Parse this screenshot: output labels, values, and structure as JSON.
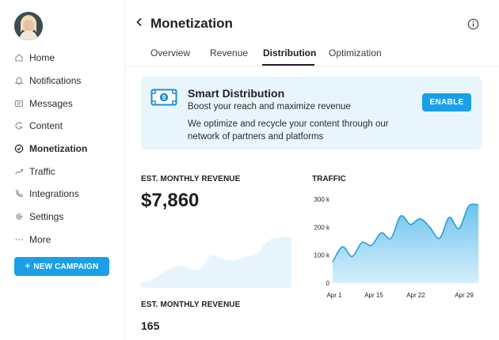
{
  "sidebar": {
    "items": [
      {
        "label": "Home",
        "icon": "home-icon",
        "active": false
      },
      {
        "label": "Notifications",
        "icon": "bell-icon",
        "active": false
      },
      {
        "label": "Messages",
        "icon": "message-icon",
        "active": false
      },
      {
        "label": "Content",
        "icon": "content-icon",
        "active": false
      },
      {
        "label": "Monetization",
        "icon": "check-circle-icon",
        "active": true
      },
      {
        "label": "Traffic",
        "icon": "trend-icon",
        "active": false
      },
      {
        "label": "Integrations",
        "icon": "phone-icon",
        "active": false
      },
      {
        "label": "Settings",
        "icon": "gear-icon",
        "active": false
      },
      {
        "label": "More",
        "icon": "more-icon",
        "active": false
      }
    ],
    "new_campaign_label": "NEW CAMPAIGN"
  },
  "header": {
    "title": "Monetization",
    "tabs": [
      {
        "label": "Overview",
        "active": false
      },
      {
        "label": "Revenue",
        "active": false
      },
      {
        "label": "Distribution",
        "active": true
      },
      {
        "label": "Optimization",
        "active": false
      }
    ]
  },
  "smart_distribution": {
    "title": "Smart Distribution",
    "subtitle": "Boost your reach and maximize revenue",
    "description": "We optimize and recycle your content through our network of partners and platforms",
    "enable_label": "ENABLE",
    "icon": "money-icon",
    "icon_text": "9"
  },
  "revenue": {
    "label": "EST. MONTHLY REVENUE",
    "value": "$7,860",
    "second_label": "EST. MONTHLY REVENUE",
    "second_value": "165"
  },
  "chart_data": {
    "type": "area",
    "title": "TRAFFIC",
    "x_ticks": [
      "Apr 1",
      "Apr 15",
      "Apr 22",
      "Apr 29"
    ],
    "y_ticks": [
      "0",
      "100 k",
      "200 k",
      "300 k"
    ],
    "ylim": [
      0,
      300
    ],
    "x": [
      1,
      3,
      5,
      7,
      9,
      11,
      13,
      15,
      17,
      19,
      21,
      23,
      25,
      27,
      29,
      31
    ],
    "values": [
      75,
      130,
      95,
      145,
      135,
      180,
      160,
      240,
      210,
      230,
      200,
      160,
      235,
      195,
      275,
      280
    ],
    "color": "#2fa6e0",
    "grid": false
  },
  "colors": {
    "accent": "#1aa0e8",
    "card_bg": "#e9f5fd",
    "spark_fill": "#e6f4fc"
  }
}
